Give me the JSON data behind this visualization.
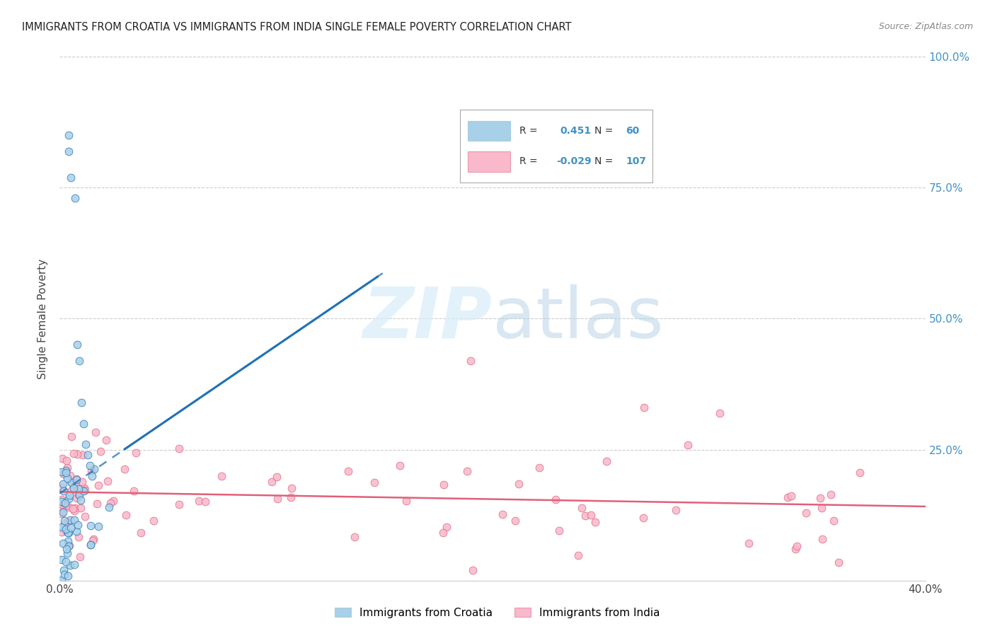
{
  "title": "IMMIGRANTS FROM CROATIA VS IMMIGRANTS FROM INDIA SINGLE FEMALE POVERTY CORRELATION CHART",
  "source": "Source: ZipAtlas.com",
  "ylabel": "Single Female Poverty",
  "legend_croatia": "Immigrants from Croatia",
  "legend_india": "Immigrants from India",
  "r_croatia": 0.451,
  "n_croatia": 60,
  "r_india": -0.029,
  "n_india": 107,
  "color_croatia": "#a8d0e8",
  "color_india": "#f9b8cb",
  "trendline_croatia": "#2171b5",
  "trendline_india": "#e0607a",
  "background_color": "#ffffff",
  "watermark_zip": "ZIP",
  "watermark_atlas": "atlas",
  "xlim": [
    0.0,
    0.4
  ],
  "ylim": [
    0.0,
    1.0
  ],
  "ytick_vals": [
    0.0,
    0.25,
    0.5,
    0.75,
    1.0
  ],
  "ytick_labels": [
    "",
    "25.0%",
    "50.0%",
    "75.0%",
    "100.0%"
  ],
  "xtick_vals": [
    0.0,
    0.05,
    0.1,
    0.15,
    0.2,
    0.25,
    0.3,
    0.35,
    0.4
  ],
  "xtick_labels": [
    "0.0%",
    "",
    "",
    "",
    "",
    "",
    "",
    "",
    "40.0%"
  ]
}
